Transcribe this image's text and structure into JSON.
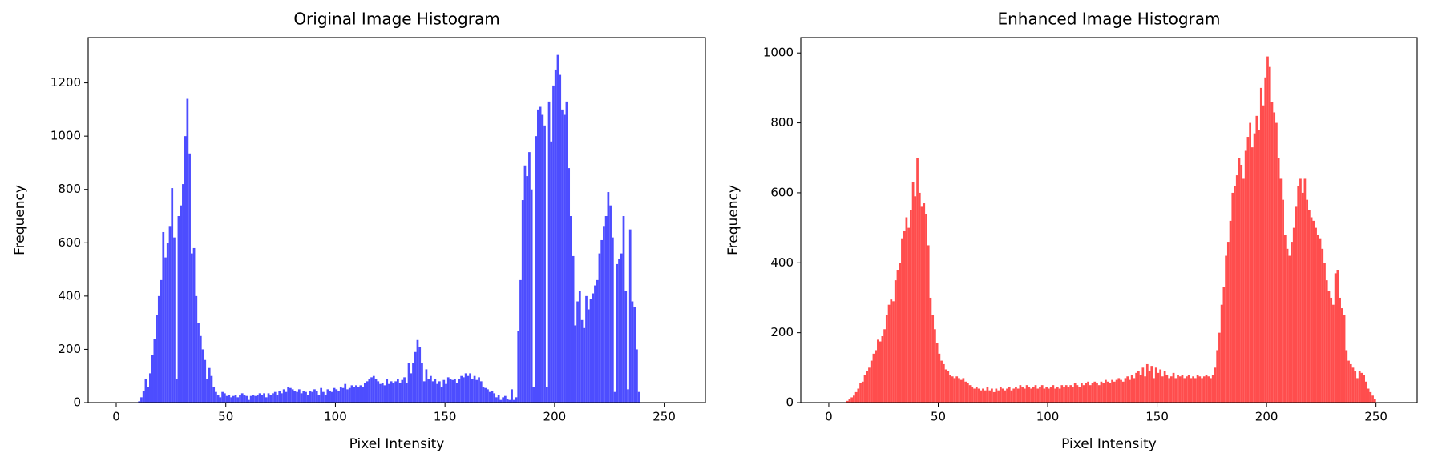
{
  "chart_data": [
    {
      "type": "histogram",
      "title": "Original Image Histogram",
      "x_label": "Pixel Intensity",
      "y_label": "Frequency",
      "color": "#4d4dff",
      "bins": [
        0,
        1,
        2,
        3,
        4,
        5,
        6,
        7,
        8,
        9,
        10,
        11,
        12,
        13,
        14,
        15,
        16,
        17,
        18,
        19,
        20,
        21,
        22,
        23,
        24,
        25,
        26,
        27,
        28,
        29,
        30,
        31,
        32,
        33,
        34,
        35,
        36,
        37,
        38,
        39,
        40,
        41,
        42,
        43,
        44,
        45,
        46,
        47,
        48,
        49,
        50,
        51,
        52,
        53,
        54,
        55,
        56,
        57,
        58,
        59,
        60,
        61,
        62,
        63,
        64,
        65,
        66,
        67,
        68,
        69,
        70,
        71,
        72,
        73,
        74,
        75,
        76,
        77,
        78,
        79,
        80,
        81,
        82,
        83,
        84,
        85,
        86,
        87,
        88,
        89,
        90,
        91,
        92,
        93,
        94,
        95,
        96,
        97,
        98,
        99,
        100,
        101,
        102,
        103,
        104,
        105,
        106,
        107,
        108,
        109,
        110,
        111,
        112,
        113,
        114,
        115,
        116,
        117,
        118,
        119,
        120,
        121,
        122,
        123,
        124,
        125,
        126,
        127,
        128,
        129,
        130,
        131,
        132,
        133,
        134,
        135,
        136,
        137,
        138,
        139,
        140,
        141,
        142,
        143,
        144,
        145,
        146,
        147,
        148,
        149,
        150,
        151,
        152,
        153,
        154,
        155,
        156,
        157,
        158,
        159,
        160,
        161,
        162,
        163,
        164,
        165,
        166,
        167,
        168,
        169,
        170,
        171,
        172,
        173,
        174,
        175,
        176,
        177,
        178,
        179,
        180,
        181,
        182,
        183,
        184,
        185,
        186,
        187,
        188,
        189,
        190,
        191,
        192,
        193,
        194,
        195,
        196,
        197,
        198,
        199,
        200,
        201,
        202,
        203,
        204,
        205,
        206,
        207,
        208,
        209,
        210,
        211,
        212,
        213,
        214,
        215,
        216,
        217,
        218,
        219,
        220,
        221,
        222,
        223,
        224,
        225,
        226,
        227,
        228,
        229,
        230,
        231,
        232,
        233,
        234,
        235,
        236,
        237,
        238,
        239,
        240,
        241,
        242,
        243,
        244,
        245,
        246,
        247,
        248,
        249,
        250,
        251,
        252,
        253,
        254,
        255,
        256
      ],
      "counts": [
        0,
        0,
        0,
        0,
        0,
        0,
        0,
        0,
        0,
        0,
        5,
        20,
        45,
        90,
        60,
        110,
        180,
        240,
        330,
        400,
        460,
        640,
        545,
        600,
        660,
        805,
        620,
        90,
        700,
        740,
        820,
        1000,
        1140,
        935,
        560,
        580,
        400,
        300,
        250,
        200,
        160,
        90,
        130,
        100,
        60,
        40,
        30,
        20,
        40,
        35,
        25,
        30,
        20,
        25,
        30,
        20,
        30,
        35,
        30,
        25,
        10,
        25,
        30,
        25,
        30,
        35,
        30,
        35,
        20,
        35,
        30,
        35,
        40,
        30,
        45,
        35,
        50,
        40,
        60,
        55,
        50,
        45,
        40,
        50,
        35,
        45,
        40,
        30,
        45,
        40,
        50,
        45,
        30,
        55,
        40,
        30,
        50,
        45,
        40,
        55,
        50,
        45,
        60,
        55,
        70,
        50,
        55,
        65,
        60,
        65,
        60,
        65,
        60,
        75,
        80,
        90,
        95,
        100,
        90,
        80,
        70,
        75,
        65,
        90,
        70,
        80,
        75,
        80,
        90,
        75,
        85,
        95,
        75,
        150,
        110,
        150,
        190,
        235,
        210,
        150,
        80,
        125,
        90,
        100,
        80,
        90,
        70,
        80,
        60,
        85,
        70,
        95,
        90,
        85,
        90,
        75,
        90,
        100,
        95,
        110,
        100,
        110,
        90,
        100,
        85,
        95,
        80,
        60,
        55,
        50,
        40,
        45,
        35,
        20,
        30,
        10,
        20,
        25,
        15,
        10,
        50,
        10,
        20,
        270,
        460,
        760,
        890,
        850,
        940,
        800,
        60,
        1000,
        1100,
        1110,
        1080,
        1040,
        60,
        1130,
        980,
        1190,
        1250,
        1305,
        1230,
        1100,
        1080,
        1130,
        880,
        700,
        550,
        290,
        380,
        420,
        310,
        280,
        400,
        350,
        390,
        410,
        440,
        460,
        560,
        610,
        660,
        700,
        790,
        740,
        620,
        40,
        520,
        540,
        560,
        700,
        420,
        50,
        650,
        380,
        360,
        200,
        40,
        0,
        0,
        0,
        0,
        0,
        0,
        0,
        0,
        0,
        0,
        0,
        0,
        0,
        0,
        0,
        0,
        0
      ],
      "xlim": [
        -12.8,
        268.8
      ],
      "xticks": [
        0,
        50,
        100,
        150,
        200,
        250
      ],
      "ylim": [
        0,
        1370
      ],
      "yticks": [
        0,
        200,
        400,
        600,
        800,
        1000,
        1200
      ]
    },
    {
      "type": "histogram",
      "title": "Enhanced Image Histogram",
      "x_label": "Pixel Intensity",
      "y_label": "Frequency",
      "color": "#ff4d4d",
      "bins": [
        0,
        1,
        2,
        3,
        4,
        5,
        6,
        7,
        8,
        9,
        10,
        11,
        12,
        13,
        14,
        15,
        16,
        17,
        18,
        19,
        20,
        21,
        22,
        23,
        24,
        25,
        26,
        27,
        28,
        29,
        30,
        31,
        32,
        33,
        34,
        35,
        36,
        37,
        38,
        39,
        40,
        41,
        42,
        43,
        44,
        45,
        46,
        47,
        48,
        49,
        50,
        51,
        52,
        53,
        54,
        55,
        56,
        57,
        58,
        59,
        60,
        61,
        62,
        63,
        64,
        65,
        66,
        67,
        68,
        69,
        70,
        71,
        72,
        73,
        74,
        75,
        76,
        77,
        78,
        79,
        80,
        81,
        82,
        83,
        84,
        85,
        86,
        87,
        88,
        89,
        90,
        91,
        92,
        93,
        94,
        95,
        96,
        97,
        98,
        99,
        100,
        101,
        102,
        103,
        104,
        105,
        106,
        107,
        108,
        109,
        110,
        111,
        112,
        113,
        114,
        115,
        116,
        117,
        118,
        119,
        120,
        121,
        122,
        123,
        124,
        125,
        126,
        127,
        128,
        129,
        130,
        131,
        132,
        133,
        134,
        135,
        136,
        137,
        138,
        139,
        140,
        141,
        142,
        143,
        144,
        145,
        146,
        147,
        148,
        149,
        150,
        151,
        152,
        153,
        154,
        155,
        156,
        157,
        158,
        159,
        160,
        161,
        162,
        163,
        164,
        165,
        166,
        167,
        168,
        169,
        170,
        171,
        172,
        173,
        174,
        175,
        176,
        177,
        178,
        179,
        180,
        181,
        182,
        183,
        184,
        185,
        186,
        187,
        188,
        189,
        190,
        191,
        192,
        193,
        194,
        195,
        196,
        197,
        198,
        199,
        200,
        201,
        202,
        203,
        204,
        205,
        206,
        207,
        208,
        209,
        210,
        211,
        212,
        213,
        214,
        215,
        216,
        217,
        218,
        219,
        220,
        221,
        222,
        223,
        224,
        225,
        226,
        227,
        228,
        229,
        230,
        231,
        232,
        233,
        234,
        235,
        236,
        237,
        238,
        239,
        240,
        241,
        242,
        243,
        244,
        245,
        246,
        247,
        248,
        249,
        250,
        251,
        252,
        253,
        254,
        255,
        256
      ],
      "counts": [
        0,
        0,
        0,
        0,
        0,
        0,
        0,
        0,
        5,
        10,
        15,
        20,
        30,
        40,
        55,
        60,
        80,
        90,
        100,
        120,
        140,
        150,
        180,
        175,
        190,
        210,
        250,
        280,
        295,
        290,
        350,
        380,
        400,
        470,
        490,
        530,
        500,
        550,
        630,
        590,
        700,
        600,
        560,
        570,
        540,
        450,
        300,
        250,
        210,
        170,
        140,
        120,
        110,
        95,
        90,
        80,
        75,
        70,
        75,
        70,
        65,
        70,
        60,
        55,
        50,
        45,
        40,
        45,
        40,
        35,
        40,
        35,
        45,
        35,
        40,
        30,
        40,
        35,
        45,
        40,
        35,
        40,
        45,
        35,
        40,
        45,
        40,
        50,
        45,
        40,
        50,
        45,
        40,
        45,
        50,
        40,
        45,
        50,
        40,
        45,
        40,
        45,
        50,
        40,
        45,
        40,
        50,
        45,
        50,
        45,
        50,
        45,
        55,
        50,
        45,
        55,
        50,
        55,
        60,
        50,
        55,
        60,
        55,
        50,
        60,
        55,
        65,
        60,
        55,
        65,
        60,
        65,
        70,
        65,
        60,
        70,
        75,
        65,
        80,
        70,
        85,
        90,
        80,
        100,
        75,
        110,
        90,
        105,
        70,
        100,
        85,
        95,
        75,
        90,
        80,
        70,
        75,
        85,
        70,
        80,
        75,
        80,
        70,
        75,
        80,
        70,
        75,
        70,
        80,
        75,
        70,
        75,
        80,
        75,
        70,
        80,
        100,
        150,
        200,
        280,
        330,
        420,
        460,
        520,
        600,
        620,
        650,
        700,
        680,
        640,
        720,
        760,
        800,
        730,
        770,
        820,
        780,
        900,
        850,
        930,
        990,
        960,
        860,
        830,
        800,
        700,
        640,
        580,
        480,
        440,
        420,
        460,
        500,
        560,
        620,
        640,
        600,
        640,
        580,
        550,
        530,
        520,
        500,
        480,
        470,
        440,
        400,
        350,
        320,
        300,
        280,
        370,
        380,
        300,
        270,
        250,
        150,
        120,
        110,
        100,
        90,
        70,
        90,
        85,
        80,
        60,
        40,
        30,
        20,
        10,
        0,
        0,
        0,
        0,
        0,
        0
      ],
      "xlim": [
        -12.8,
        268.8
      ],
      "xticks": [
        0,
        50,
        100,
        150,
        200,
        250
      ],
      "ylim": [
        0,
        1044
      ],
      "yticks": [
        0,
        200,
        400,
        600,
        800,
        1000
      ]
    }
  ]
}
